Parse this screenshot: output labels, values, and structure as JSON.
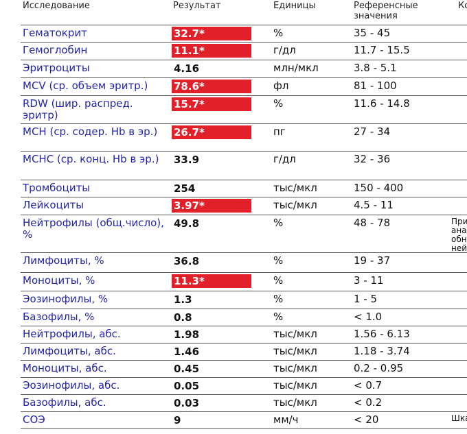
{
  "header": {
    "study": "Исследование",
    "result": "Результат",
    "units": "Единицы",
    "reference": "Референсные значения",
    "comment": "Ко"
  },
  "colors": {
    "flag_bg": "#e1202a",
    "name_text": "#2424a8"
  },
  "rows": [
    {
      "name": "Гематокрит",
      "result": "32.7*",
      "flag": true,
      "units": "%",
      "ref": "35 - 45",
      "comment": ""
    },
    {
      "name": "Гемоглобин",
      "result": "11.1*",
      "flag": true,
      "units": "г/дл",
      "ref": "11.7 - 15.5",
      "comment": ""
    },
    {
      "name": "Эритроциты",
      "result": "4.16",
      "flag": false,
      "units": "млн/мкл",
      "ref": "3.8 - 5.1",
      "comment": ""
    },
    {
      "name": "MCV (ср. объем эритр.)",
      "result": "78.6*",
      "flag": true,
      "units": "фл",
      "ref": "81 - 100",
      "comment": ""
    },
    {
      "name": "RDW (шир. распред. эритр)",
      "result": "15.7*",
      "flag": true,
      "units": "%",
      "ref": "11.6 - 14.8",
      "comment": ""
    },
    {
      "name": "MCH (ср. содер. Hb в эр.)",
      "result": "26.7*",
      "flag": true,
      "units": "пг",
      "ref": "27 - 34",
      "comment": ""
    },
    {
      "name": "MCHC (ср. конц. Hb в эр.)",
      "result": "33.9",
      "flag": false,
      "units": "г/дл",
      "ref": "32 - 36",
      "comment": ""
    },
    {
      "name": "Тромбоциты",
      "result": "254",
      "flag": false,
      "units": "тыс/мкл",
      "ref": "150 - 400",
      "comment": ""
    },
    {
      "name": "Лейкоциты",
      "result": "3.97*",
      "flag": true,
      "units": "тыс/мкл",
      "ref": "4.5 - 11",
      "comment": ""
    },
    {
      "name": "Нейтрофилы (общ.число), %",
      "result": "49.8",
      "flag": false,
      "units": "%",
      "ref": "48 - 78",
      "comment": "При\nана\nобн\nней"
    },
    {
      "name": "Лимфоциты, %",
      "result": "36.8",
      "flag": false,
      "units": "%",
      "ref": "19 - 37",
      "comment": ""
    },
    {
      "name": "Моноциты, %",
      "result": "11.3*",
      "flag": true,
      "units": "%",
      "ref": "3 - 11",
      "comment": ""
    },
    {
      "name": "Эозинофилы, %",
      "result": "1.3",
      "flag": false,
      "units": "%",
      "ref": "1 - 5",
      "comment": ""
    },
    {
      "name": "Базофилы, %",
      "result": "0.8",
      "flag": false,
      "units": "%",
      "ref": "< 1.0",
      "comment": ""
    },
    {
      "name": "Нейтрофилы, абс.",
      "result": "1.98",
      "flag": false,
      "units": "тыс/мкл",
      "ref": "1.56 - 6.13",
      "comment": ""
    },
    {
      "name": "Лимфоциты, абс.",
      "result": "1.46",
      "flag": false,
      "units": "тыс/мкл",
      "ref": "1.18 - 3.74",
      "comment": ""
    },
    {
      "name": "Моноциты, абс.",
      "result": "0.45",
      "flag": false,
      "units": "тыс/мкл",
      "ref": "0.2 - 0.95",
      "comment": ""
    },
    {
      "name": "Эозинофилы, абс.",
      "result": "0.05",
      "flag": false,
      "units": "тыс/мкл",
      "ref": "< 0.7",
      "comment": ""
    },
    {
      "name": "Базофилы, абс.",
      "result": "0.03",
      "flag": false,
      "units": "тыс/мкл",
      "ref": "< 0.2",
      "comment": ""
    },
    {
      "name": "СОЭ",
      "result": "9",
      "flag": false,
      "units": "мм/ч",
      "ref": "< 20",
      "comment": "Шка"
    }
  ]
}
